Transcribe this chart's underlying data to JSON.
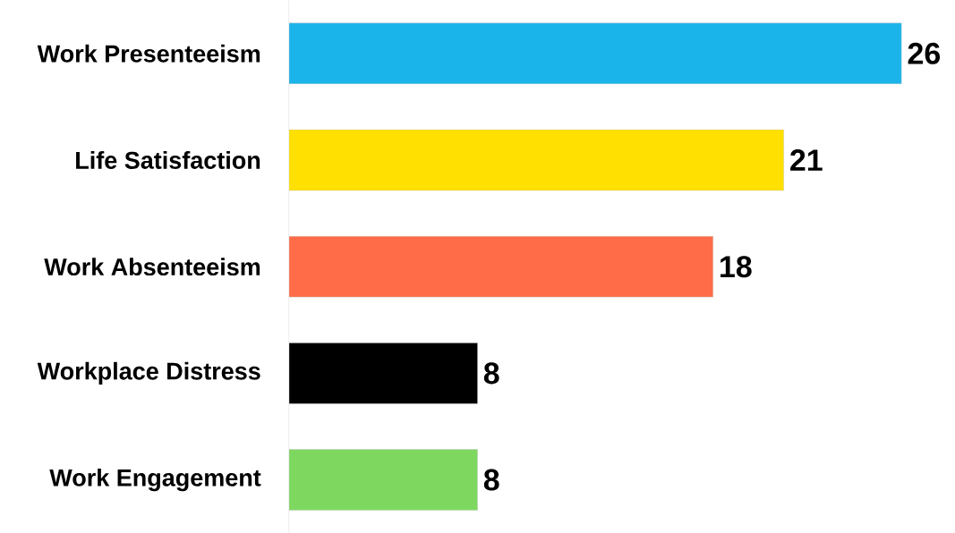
{
  "chart_data": {
    "type": "bar",
    "orientation": "horizontal",
    "categories": [
      "Work Presenteeism",
      "Life Satisfaction",
      "Work Absenteeism",
      "Workplace Distress",
      "Work Engagement"
    ],
    "values": [
      26,
      21,
      18,
      8,
      8
    ],
    "colors": [
      "#1ab4ea",
      "#ffe000",
      "#ff6c47",
      "#000000",
      "#7ed860"
    ],
    "data_labels": true
  }
}
